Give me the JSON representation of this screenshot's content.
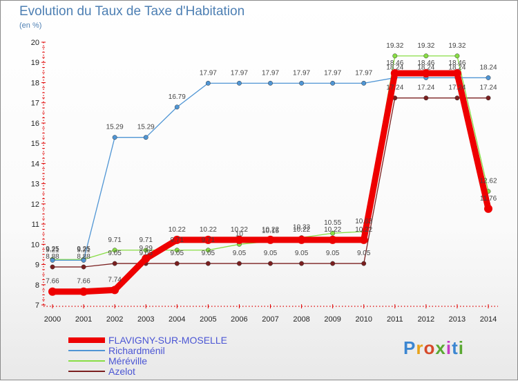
{
  "title": "Evolution du Taux de Taxe d'Habitation",
  "subtitle": "(en %)",
  "logo": "Proxiti",
  "chart_data": {
    "type": "line",
    "title": "Evolution du Taux de Taxe d'Habitation",
    "subtitle": "(en %)",
    "x": [
      2000,
      2001,
      2002,
      2003,
      2004,
      2005,
      2006,
      2007,
      2008,
      2009,
      2010,
      2011,
      2012,
      2013,
      2014
    ],
    "ylim": [
      7,
      20
    ],
    "yticks": [
      7,
      8,
      9,
      10,
      11,
      12,
      13,
      14,
      15,
      16,
      17,
      18,
      19,
      20
    ],
    "grid": false,
    "legend": "bottom-left",
    "series": [
      {
        "name": "FLAVIGNY-SUR-MOSELLE",
        "color": "#ee0000",
        "values": [
          7.66,
          7.66,
          7.74,
          9.29,
          10.22,
          10.22,
          10.22,
          10.22,
          10.22,
          10.22,
          10.22,
          18.46,
          18.46,
          18.46,
          11.76
        ],
        "labels": [
          "7.66",
          "7.66",
          "7.74",
          "9.29",
          "10.22",
          "10.22",
          "10.22",
          "10.22",
          "10.22",
          "10.22",
          "10.22",
          "18.46",
          "18.46",
          "18.46",
          "11.76"
        ]
      },
      {
        "name": "Richardménil",
        "color": "#4f95d4",
        "values": [
          9.21,
          9.21,
          15.29,
          15.29,
          16.79,
          17.97,
          17.97,
          17.97,
          17.97,
          17.97,
          17.97,
          18.24,
          18.24,
          18.24,
          18.24
        ],
        "labels": [
          "9.21",
          "9.21",
          "15.29",
          "15.29",
          "16.79",
          "17.97",
          "17.97",
          "17.97",
          "17.97",
          "17.97",
          "17.97",
          "18.24",
          "18.24",
          "18.24",
          "18.24"
        ]
      },
      {
        "name": "Méréville",
        "color": "#88dd44",
        "values": [
          9.25,
          9.25,
          9.71,
          9.71,
          9.71,
          9.71,
          10.0,
          10.15,
          10.33,
          10.55,
          10.63,
          19.32,
          19.32,
          19.32,
          12.62
        ],
        "labels": [
          "9.25",
          "9.25",
          "9.71",
          "9.71",
          "9.71",
          "9.71",
          "10",
          "10.15",
          "10.33",
          "10.55",
          "10.63",
          "19.32",
          "19.32",
          "19.32",
          "12.62"
        ]
      },
      {
        "name": "Azelot",
        "color": "#7a1f1f",
        "values": [
          8.88,
          8.88,
          9.05,
          9.05,
          9.05,
          9.05,
          9.05,
          9.05,
          9.05,
          9.05,
          9.05,
          17.24,
          17.24,
          17.24,
          17.24
        ],
        "labels": [
          "8.88",
          "8.88",
          "9.05",
          "9.05",
          "9.05",
          "9.05",
          "9.05",
          "9.05",
          "9.05",
          "9.05",
          "9.05",
          "17.24",
          "17.24",
          "17.24",
          "17.24"
        ]
      }
    ]
  }
}
